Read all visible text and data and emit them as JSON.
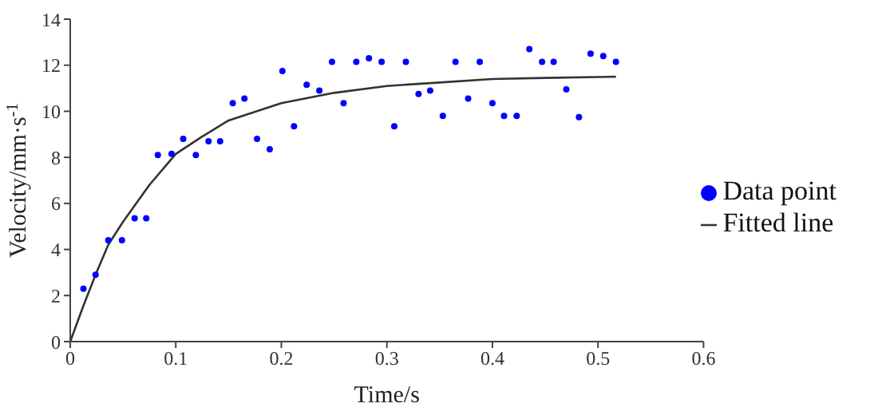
{
  "chart_data": {
    "type": "scatter",
    "xlabel": "Time/s",
    "ylabel": "Velocity/mm·s$^{-1}$",
    "xlim": [
      0,
      0.6
    ],
    "xticks": [
      0,
      0.1,
      0.2,
      0.3,
      0.4,
      0.5,
      0.6
    ],
    "ylim": [
      0,
      14
    ],
    "yticks": [
      0,
      2,
      4,
      6,
      8,
      10,
      12,
      14
    ],
    "grid": false,
    "legend": "right",
    "marker": "circle",
    "series": [
      {
        "name": "Data point",
        "color": "#0000ff",
        "x": [
          0.0125,
          0.024,
          0.036,
          0.049,
          0.061,
          0.072,
          0.083,
          0.096,
          0.107,
          0.119,
          0.131,
          0.142,
          0.154,
          0.165,
          0.177,
          0.189,
          0.201,
          0.212,
          0.224,
          0.236,
          0.248,
          0.259,
          0.271,
          0.283,
          0.295,
          0.307,
          0.318,
          0.33,
          0.341,
          0.353,
          0.365,
          0.377,
          0.388,
          0.4,
          0.411,
          0.423,
          0.435,
          0.447,
          0.458,
          0.47,
          0.482,
          0.493,
          0.505,
          0.517
        ],
        "values": [
          2.3,
          2.9,
          4.4,
          4.4,
          5.35,
          5.35,
          8.1,
          8.15,
          8.8,
          8.1,
          8.7,
          8.7,
          10.35,
          10.55,
          8.8,
          8.35,
          11.75,
          9.35,
          11.15,
          10.9,
          12.15,
          10.35,
          12.15,
          12.3,
          12.15,
          9.35,
          12.15,
          10.75,
          10.9,
          9.8,
          12.15,
          10.55,
          12.15,
          10.35,
          9.8,
          9.8,
          12.7,
          12.15,
          12.15,
          10.95,
          9.75,
          12.5,
          12.4,
          12.15
        ]
      },
      {
        "name": "Fitted line",
        "type": "line",
        "marker": "none",
        "color": "#333333",
        "x": [
          0,
          0.012,
          0.024,
          0.036,
          0.05,
          0.075,
          0.1,
          0.125,
          0.15,
          0.2,
          0.25,
          0.3,
          0.35,
          0.4,
          0.45,
          0.517
        ],
        "values": [
          0,
          1.5,
          2.9,
          4.2,
          5.2,
          6.8,
          8.15,
          8.9,
          9.6,
          10.35,
          10.8,
          11.1,
          11.25,
          11.4,
          11.45,
          11.5
        ]
      }
    ]
  }
}
